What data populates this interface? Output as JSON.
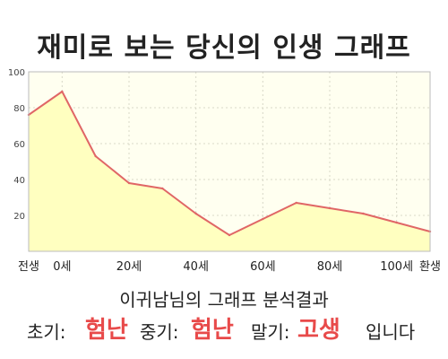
{
  "chart_data": {
    "type": "area",
    "title": "재미로 보는 당신의 인생 그래프",
    "x": [
      -10,
      0,
      10,
      20,
      30,
      40,
      50,
      60,
      70,
      80,
      90,
      100,
      110
    ],
    "xticks": [
      {
        "value": -10,
        "label": "전생"
      },
      {
        "value": 0,
        "label": "0세"
      },
      {
        "value": 20,
        "label": "20세"
      },
      {
        "value": 40,
        "label": "40세"
      },
      {
        "value": 60,
        "label": "60세"
      },
      {
        "value": 80,
        "label": "80세"
      },
      {
        "value": 100,
        "label": "100세"
      },
      {
        "value": 110,
        "label": "환생"
      }
    ],
    "values": [
      76,
      89,
      53,
      38,
      35,
      21,
      9,
      18,
      27,
      24,
      21,
      16,
      11
    ],
    "yticks": [
      20,
      40,
      60,
      80,
      100
    ],
    "ylim": [
      0,
      100
    ],
    "xlim": [
      -10,
      110
    ],
    "grid": true,
    "colors": {
      "line": "#e06666",
      "fill": "#ffffc0",
      "plot_bg": "#fffff0",
      "grid": "#d8d8c8",
      "axis": "#666666"
    }
  },
  "summary": {
    "line1": "이귀남님의 그래프 분석결과",
    "early_label": "초기:",
    "early_value": "험난",
    "mid_label": "중기:",
    "mid_value": "험난",
    "late_label": "말기:",
    "late_value": "고생",
    "ending": "입니다",
    "value_color": "#e84a4a"
  }
}
